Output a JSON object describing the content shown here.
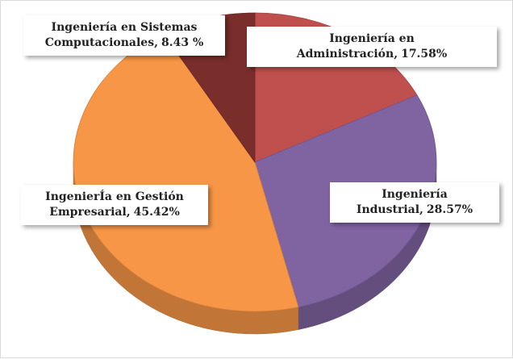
{
  "chart_data": {
    "type": "pie",
    "categories": [
      "Ingeniería en Administración,",
      "Ingeniería Industrial,",
      "IngenierÍa en Gestión Empresarial,",
      "Ingeniería en Sistemas Computacionales,"
    ],
    "values": [
      17.58,
      28.57,
      45.42,
      8.43
    ],
    "value_labels": [
      "17.58%",
      "28.57%",
      "45.42%",
      "8.43 %"
    ],
    "colors": [
      "#c0504d",
      "#8064a2",
      "#f79646",
      "#7a2e2c"
    ]
  }
}
